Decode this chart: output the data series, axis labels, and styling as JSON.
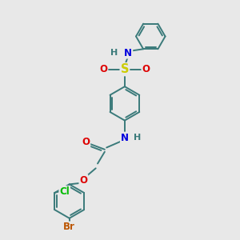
{
  "bg_color": "#e8e8e8",
  "bond_color": "#3a7a7a",
  "bond_width": 1.4,
  "atom_colors": {
    "N": "#0000dd",
    "O": "#dd0000",
    "S": "#cccc00",
    "Cl": "#00bb00",
    "Br": "#bb5500",
    "C": "#3a7a7a"
  },
  "font_size": 8.5,
  "fig_size": [
    3.0,
    3.0
  ],
  "dpi": 100
}
